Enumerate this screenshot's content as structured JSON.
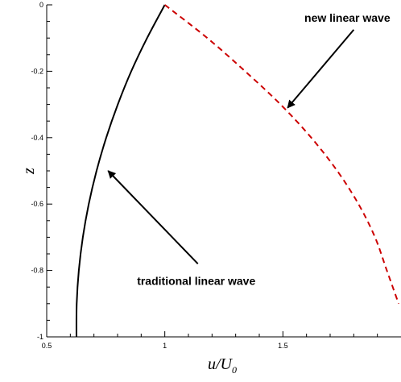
{
  "chart_data": {
    "type": "line",
    "title": "",
    "xlabel": "u/U",
    "xlabel_sub": "0",
    "ylabel": "z",
    "xlim": [
      0.5,
      2.0
    ],
    "ylim": [
      -1,
      0
    ],
    "xticks": [
      0.5,
      1,
      1.5
    ],
    "xtick_labels": [
      "0.5",
      "1",
      "1.5"
    ],
    "yticks": [
      0,
      -0.2,
      -0.4,
      -0.6,
      -0.8,
      -1
    ],
    "ytick_labels": [
      "0",
      "-0.2",
      "-0.4",
      "-0.6",
      "-0.8",
      "-1"
    ],
    "grid": false,
    "series": [
      {
        "name": "traditional linear wave",
        "color": "#000000",
        "style": "solid",
        "z": [
          0,
          -0.1,
          -0.2,
          -0.3,
          -0.4,
          -0.5,
          -0.6,
          -0.7,
          -0.8,
          -0.9,
          -1.0
        ],
        "u": [
          1.0,
          0.925,
          0.858,
          0.801,
          0.752,
          0.711,
          0.678,
          0.653,
          0.636,
          0.627,
          0.626
        ]
      },
      {
        "name": "new linear wave",
        "color": "#cc0000",
        "style": "dashed",
        "z": [
          0,
          -0.1,
          -0.2,
          -0.3,
          -0.4,
          -0.5,
          -0.6,
          -0.7,
          -0.8,
          -0.9
        ],
        "u": [
          1.0,
          1.18,
          1.34,
          1.49,
          1.62,
          1.73,
          1.82,
          1.89,
          1.94,
          1.99
        ]
      }
    ],
    "annotations": [
      {
        "text": "new linear wave",
        "from": [
          1.8,
          -0.075
        ],
        "to": [
          1.52,
          -0.31
        ]
      },
      {
        "text": "traditional linear wave",
        "from": [
          1.14,
          -0.78
        ],
        "to": [
          0.76,
          -0.5
        ]
      }
    ]
  }
}
